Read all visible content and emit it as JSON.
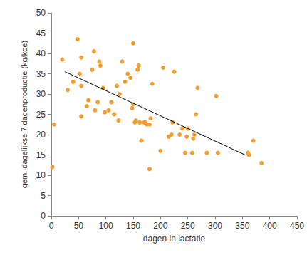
{
  "chart_data": {
    "type": "scatter",
    "x_label": "dagen in lactatie",
    "y_label": "gem. dagelijkse 7 dagenproductie (kg/koe)",
    "xlim": [
      0,
      450
    ],
    "xticks": [
      0,
      50,
      100,
      150,
      200,
      250,
      300,
      350,
      400,
      450
    ],
    "ylim": [
      0,
      50
    ],
    "yticks": [
      0,
      5,
      10,
      15,
      20,
      25,
      30,
      35,
      40,
      45,
      50
    ],
    "grid": false,
    "series": [
      {
        "type": "scatter",
        "color": "#f39c2f",
        "marker": "circle",
        "x": [
          2,
          5,
          20,
          30,
          40,
          48,
          52,
          55,
          55,
          55,
          65,
          68,
          75,
          78,
          80,
          85,
          88,
          90,
          95,
          98,
          105,
          110,
          115,
          120,
          123,
          125,
          130,
          135,
          140,
          145,
          148,
          150,
          150,
          153,
          155,
          158,
          160,
          162,
          165,
          170,
          172,
          175,
          180,
          180,
          182,
          185,
          200,
          205,
          215,
          220,
          222,
          225,
          235,
          240,
          245,
          248,
          250,
          258,
          260,
          262,
          265,
          268,
          285,
          302,
          305,
          360,
          362,
          370,
          385
        ],
        "values": [
          12,
          22.5,
          38.5,
          31,
          33,
          43.5,
          35,
          39,
          24.5,
          32,
          27,
          28.5,
          36,
          40.5,
          26,
          28,
          38,
          37,
          31.5,
          25.5,
          26,
          28,
          25,
          32,
          23.5,
          30,
          38,
          33,
          35,
          34,
          26.5,
          42.5,
          27.5,
          23,
          23.5,
          36,
          37,
          23,
          18.5,
          23,
          23,
          22.5,
          11.5,
          22.5,
          24,
          32.5,
          16,
          36.5,
          19.5,
          20,
          23,
          35.5,
          20,
          21.5,
          15.5,
          19.5,
          21.5,
          15.5,
          19,
          20,
          25,
          31.5,
          15.5,
          29.5,
          15.5,
          15.5,
          15,
          18.5,
          13
        ]
      },
      {
        "type": "line",
        "color": "#000000",
        "line_style": "solid",
        "x": [
          25,
          355
        ],
        "values": [
          35.5,
          15
        ]
      }
    ]
  }
}
